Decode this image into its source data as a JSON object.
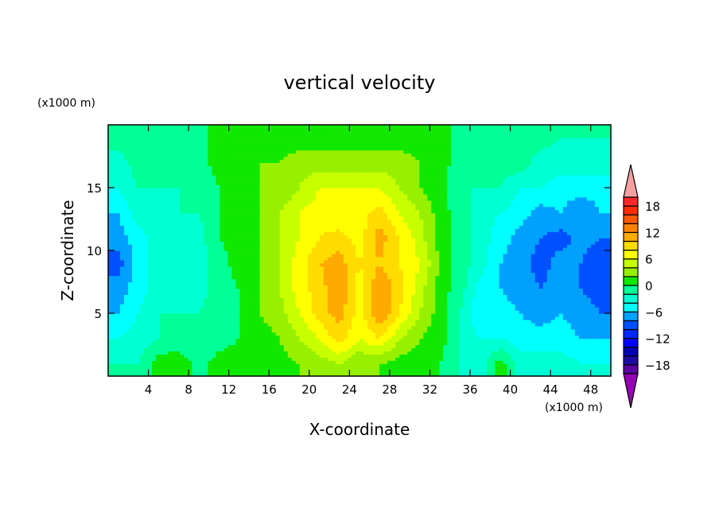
{
  "chart_data": {
    "type": "heatmap",
    "title": "vertical velocity",
    "xlabel": "X-coordinate",
    "ylabel": "Z-coordinate",
    "x_units": "(x1000 m)",
    "y_units": "(x1000 m)",
    "xlim": [
      0,
      50
    ],
    "ylim": [
      0,
      20
    ],
    "x_ticks": [
      4,
      8,
      12,
      16,
      20,
      24,
      28,
      32,
      36,
      40,
      44,
      48
    ],
    "y_ticks": [
      5,
      10,
      15
    ],
    "x": [
      1,
      3,
      5,
      7,
      9,
      11,
      13,
      15,
      17,
      19,
      21,
      23,
      25,
      27,
      29,
      31,
      33,
      35,
      37,
      39,
      41,
      43,
      45,
      47,
      49
    ],
    "z": [
      1,
      3,
      5,
      7,
      9,
      11,
      13,
      15,
      17,
      19
    ],
    "values": [
      [
        -2,
        -2,
        1,
        2,
        -1,
        1,
        1,
        1,
        1,
        2,
        3,
        4,
        2,
        2,
        1,
        1,
        0,
        -2,
        -3,
        1,
        -3,
        -3,
        -3,
        -4,
        -4
      ],
      [
        -4,
        -3,
        -2,
        -2,
        -2,
        -1,
        0,
        1,
        2,
        4,
        6,
        9,
        6,
        8,
        4,
        2,
        1,
        -2,
        -4,
        -4,
        -5,
        -5,
        -5,
        -6,
        -6
      ],
      [
        -6,
        -4,
        -2,
        -2,
        -2,
        -1,
        0,
        2,
        3,
        6,
        9,
        11,
        7,
        12,
        8,
        4,
        1,
        -2,
        -6,
        -5,
        -6,
        -7,
        -6,
        -7,
        -8
      ],
      [
        -7,
        -5,
        -3,
        -3,
        -3,
        -1,
        0,
        2,
        4,
        7,
        9,
        12,
        7,
        12,
        9,
        5,
        1,
        -1,
        -5,
        -6,
        -7,
        -8,
        -7,
        -8,
        -9
      ],
      [
        -9,
        -5,
        -3,
        -3,
        -3,
        -1,
        1,
        2,
        4,
        7,
        10,
        11,
        8,
        10,
        8,
        6,
        2,
        -1,
        -3,
        -6,
        -7,
        -9,
        -7,
        -8,
        -10
      ],
      [
        -7,
        -5,
        -3,
        -3,
        -3,
        0,
        1,
        2,
        4,
        6,
        8,
        9,
        7,
        11,
        8,
        5,
        1,
        -1,
        -3,
        -5,
        -7,
        -8,
        -9,
        -7,
        -8
      ],
      [
        -6,
        -3,
        -3,
        -2,
        -2,
        0,
        1,
        2,
        4,
        6,
        7,
        6,
        7,
        9,
        6,
        4,
        1,
        -1,
        -3,
        -4,
        -5,
        -7,
        -6,
        -8,
        -6
      ],
      [
        -4,
        -2,
        -2,
        -2,
        -2,
        0,
        1,
        2,
        2,
        4,
        6,
        6,
        6,
        6,
        4,
        2,
        1,
        -2,
        -2,
        -2,
        -4,
        -4,
        -5,
        -5,
        -5
      ],
      [
        -3,
        -1,
        -1,
        -1,
        -1,
        1,
        1,
        2,
        2,
        3,
        3,
        3,
        3,
        3,
        3,
        2,
        1,
        -1,
        -1,
        -1,
        -1,
        -3,
        -3,
        -3,
        -3
      ],
      [
        -1,
        -1,
        -1,
        -1,
        -1,
        1,
        1,
        1,
        1,
        1,
        1,
        1,
        1,
        1,
        1,
        1,
        1,
        -1,
        -1,
        -1,
        -1,
        -1,
        -2,
        -2,
        -2
      ]
    ],
    "colorbar": {
      "levels": [
        -20,
        -18,
        -16,
        -14,
        -12,
        -10,
        -8,
        -6,
        -4,
        -2,
        0,
        2,
        4,
        6,
        8,
        10,
        12,
        14,
        16,
        18,
        20
      ],
      "labels": [
        "18",
        "12",
        "6",
        "0",
        "-6",
        "-12",
        "-18"
      ],
      "label_values": [
        18,
        12,
        6,
        0,
        -6,
        -12,
        -18
      ],
      "colors": [
        "#5a00a0",
        "#1e0aa0",
        "#0000b4",
        "#0000ff",
        "#0028ff",
        "#0050ff",
        "#00a0ff",
        "#00ffff",
        "#00ffd2",
        "#00ff96",
        "#10e800",
        "#96f000",
        "#c8ff00",
        "#ffff00",
        "#ffdc00",
        "#ffaa00",
        "#ff8200",
        "#ff5a00",
        "#ff2d00",
        "#ff2828"
      ],
      "over_color": "#f5a0a0",
      "under_color": "#9600b4"
    }
  }
}
